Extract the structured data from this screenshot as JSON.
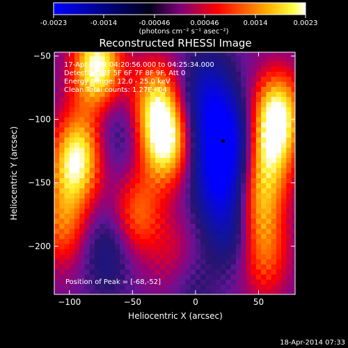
{
  "colorbar": {
    "tick_labels": [
      "-0.0023",
      "-0.0014",
      "-0.00046",
      "0.00046",
      "0.0014",
      "0.0023"
    ],
    "unit_label": "(photons cm⁻² s⁻¹ asec⁻²)",
    "colors": [
      "#0000ff",
      "#000000",
      "#ff0000",
      "#ffff00",
      "#ffffff"
    ]
  },
  "title": "Reconstructed RHESSI Image",
  "info": {
    "time_range": "17-Apr-2014 04:20:56.000 to 04:25:34.000",
    "detectors": "Detectors: 3F 5F 6F 7F 8F 9F, Att 0",
    "energy": "Energy Range: 12.0 - 25.0 keV",
    "clean": "Clean     Total counts: 1.27E+04",
    "peak": "Position of Peak = [-68,-52]"
  },
  "footer_timestamp": "18-Apr-2014 07:33",
  "chart_data": {
    "type": "heatmap",
    "title": "Reconstructed RHESSI Image",
    "xlabel": "Heliocentric X (arcsec)",
    "ylabel": "Heliocentric Y (arcsec)",
    "xlim": [
      -112,
      79
    ],
    "ylim": [
      -238,
      -47
    ],
    "x_ticks": [
      -100,
      -50,
      0,
      50
    ],
    "y_ticks": [
      -50,
      -100,
      -150,
      -200
    ],
    "x_tick_labels": [
      "−100",
      "−50",
      "0",
      "50"
    ],
    "y_tick_labels": [
      "−50",
      "−100",
      "−150",
      "−200"
    ],
    "value_range": [
      -0.0023,
      0.0023
    ],
    "peak_position": [
      -68,
      -52
    ],
    "marked_point": [
      22,
      -117
    ],
    "blobs": [
      {
        "x": -78,
        "y": -58,
        "value": 0.0023
      },
      {
        "x": -92,
        "y": -125,
        "value": 0.0016
      },
      {
        "x": -99,
        "y": -145,
        "value": 0.0009
      },
      {
        "x": -24,
        "y": -118,
        "value": 0.0021
      },
      {
        "x": -32,
        "y": -85,
        "value": 0.0015
      },
      {
        "x": -46,
        "y": -175,
        "value": 0.0012
      },
      {
        "x": -15,
        "y": -210,
        "value": 0.0007
      },
      {
        "x": 65,
        "y": -95,
        "value": 0.0021
      },
      {
        "x": 58,
        "y": -130,
        "value": 0.0014
      },
      {
        "x": 50,
        "y": -170,
        "value": 0.0013
      },
      {
        "x": 55,
        "y": -210,
        "value": 0.001
      },
      {
        "x": -105,
        "y": -185,
        "value": 0.0011
      },
      {
        "x": 22,
        "y": -115,
        "value": -0.0023
      },
      {
        "x": 18,
        "y": -150,
        "value": -0.0016
      },
      {
        "x": 10,
        "y": -80,
        "value": -0.0014
      },
      {
        "x": 28,
        "y": -185,
        "value": -0.001
      },
      {
        "x": -62,
        "y": -110,
        "value": -0.0006
      },
      {
        "x": -70,
        "y": -205,
        "value": -0.0008
      },
      {
        "x": -5,
        "y": -230,
        "value": -0.0006
      }
    ]
  }
}
